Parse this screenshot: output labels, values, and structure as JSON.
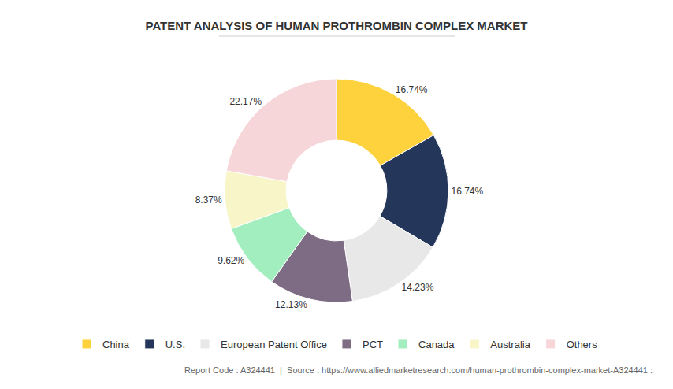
{
  "chart_data": {
    "type": "donut",
    "title": "PATENT ANALYSIS OF HUMAN PROTHROMBIN COMPLEX MARKET",
    "categories": [
      "China",
      "U.S.",
      "European Patent Office",
      "PCT",
      "Canada",
      "Australia",
      "Others"
    ],
    "values": [
      16.74,
      16.74,
      14.23,
      12.13,
      9.62,
      8.37,
      22.17
    ],
    "value_labels": [
      "16.74%",
      "16.74%",
      "14.23%",
      "12.13%",
      "9.62%",
      "8.37%",
      "22.17%"
    ],
    "colors": [
      "#fdd23c",
      "#243659",
      "#e8e8e8",
      "#7e6c85",
      "#a2eebf",
      "#f8f6c9",
      "#f7d6da"
    ],
    "data_labels": true,
    "legend": "bottom",
    "annotations": [
      {
        "text": "Report Code : A324441  |  Source : https://www.alliedmarketresearch.com/human-prothrombin-complex-market-A324441 :"
      }
    ]
  }
}
